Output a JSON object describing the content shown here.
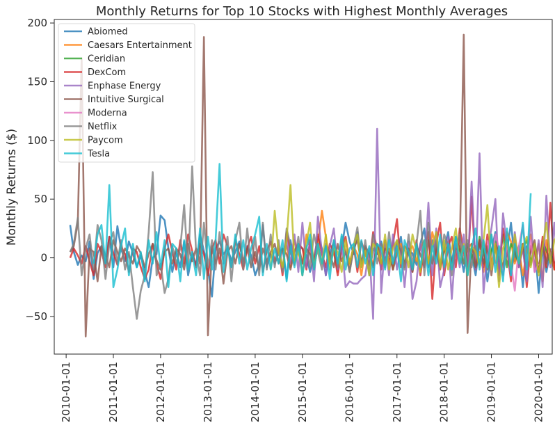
{
  "chart_data": {
    "type": "line",
    "title": "Monthly Returns for Top 10 Stocks with Highest Monthly Averages",
    "xlabel": "",
    "ylabel": "Monthly Returns ($)",
    "xlim": [
      "2009-10-01",
      "2020-04-15"
    ],
    "ylim": [
      -82,
      203
    ],
    "x_ticks": [
      "2010-01-01",
      "2011-01-01",
      "2012-01-01",
      "2013-01-01",
      "2014-01-01",
      "2015-01-01",
      "2016-01-01",
      "2017-01-01",
      "2018-01-01",
      "2019-01-01",
      "2020-01-01"
    ],
    "y_ticks": [
      -50,
      0,
      50,
      100,
      150,
      200
    ],
    "grid": false,
    "legend": "top-left",
    "series": [
      {
        "name": "Abiomed",
        "color": "#1f77b4",
        "start": "2010-02-01",
        "values": [
          28,
          5,
          -6,
          2,
          -3,
          14,
          -18,
          4,
          10,
          -5,
          18,
          -8,
          27,
          8,
          -3,
          14,
          4,
          -8,
          2,
          -12,
          -25,
          0,
          3,
          36,
          32,
          8,
          -12,
          5,
          -8,
          14,
          -15,
          3,
          -6,
          20,
          6,
          -10,
          -33,
          8,
          14,
          3,
          8,
          -2,
          5,
          14,
          -7,
          10,
          2,
          -15,
          -5,
          28,
          -8,
          3,
          -5,
          4,
          8,
          -18,
          15,
          -5,
          10,
          8,
          2,
          -12,
          0,
          18,
          8,
          -15,
          3,
          14,
          -6,
          8,
          30,
          14,
          3,
          22,
          -5,
          10,
          -15,
          8,
          3,
          14,
          -2,
          8,
          -10,
          3,
          18,
          -8,
          5,
          4,
          -6,
          12,
          25,
          -8,
          15,
          3,
          -10,
          8,
          22,
          -5,
          18,
          6,
          -12,
          10,
          3,
          -15,
          12,
          8,
          -20,
          6,
          22,
          -8,
          -14,
          5,
          30,
          -3,
          10,
          -25,
          10,
          -6,
          12,
          -30,
          8,
          -12,
          5,
          -5
        ]
      },
      {
        "name": "Caesars Entertainment",
        "color": "#ff7f0e",
        "start": "2014-08-01",
        "values": [
          5,
          10,
          -8,
          15,
          3,
          -5,
          20,
          8,
          -10,
          12,
          40,
          18,
          -5,
          8,
          -12,
          14,
          6,
          -8,
          10,
          3,
          -15,
          8,
          5,
          -6,
          12,
          3,
          -5,
          8,
          -10,
          6,
          12,
          -8,
          5,
          10,
          -3,
          8,
          15,
          -5,
          22,
          8,
          -10,
          6,
          14,
          -8,
          3,
          10,
          -5,
          8,
          12,
          -6,
          5,
          -12,
          10,
          -4,
          8,
          6,
          -10,
          22,
          14,
          -5,
          8,
          -15,
          5,
          20,
          -8,
          12,
          -20,
          15,
          5,
          -10,
          8,
          6
        ]
      },
      {
        "name": "Ceridian",
        "color": "#2ca02c",
        "start": "2018-05-01",
        "values": [
          8,
          -5,
          12,
          3,
          -8,
          18,
          5,
          -10,
          6,
          14,
          -3,
          20,
          -8,
          12,
          5,
          -6,
          8,
          15,
          -4,
          10,
          -12,
          14,
          6,
          -5
        ]
      },
      {
        "name": "DexCom",
        "color": "#d62728",
        "start": "2010-02-01",
        "values": [
          0,
          8,
          2,
          -5,
          10,
          -3,
          -15,
          12,
          5,
          -8,
          18,
          4,
          -6,
          10,
          3,
          -12,
          8,
          5,
          -8,
          -18,
          -10,
          12,
          -5,
          -18,
          8,
          20,
          5,
          -10,
          15,
          -5,
          20,
          6,
          -8,
          12,
          3,
          -15,
          8,
          15,
          -5,
          20,
          10,
          -8,
          15,
          3,
          -10,
          8,
          18,
          -5,
          10,
          -12,
          6,
          14,
          -3,
          8,
          -15,
          22,
          5,
          -6,
          12,
          8,
          -10,
          15,
          -4,
          20,
          3,
          -8,
          12,
          5,
          -15,
          8,
          18,
          -5,
          10,
          -12,
          14,
          3,
          -6,
          22,
          8,
          -10,
          15,
          -5,
          12,
          33,
          -8,
          10,
          6,
          -12,
          15,
          -15,
          8,
          22,
          -35,
          12,
          30,
          -15,
          10,
          18,
          -8,
          25,
          5,
          -12,
          52,
          -10,
          15,
          -8,
          20,
          -5,
          10,
          -15,
          25,
          8,
          -20,
          15,
          -8,
          12,
          -25,
          10,
          5,
          -12,
          18,
          -8,
          47,
          -10,
          10
        ]
      },
      {
        "name": "Enphase Energy",
        "color": "#9467bd",
        "start": "2014-08-01",
        "values": [
          -10,
          15,
          -5,
          20,
          -12,
          30,
          -8,
          15,
          -20,
          35,
          5,
          -15,
          10,
          25,
          -10,
          12,
          -25,
          -20,
          -22,
          -22,
          -18,
          -15,
          8,
          -52,
          110,
          -30,
          12,
          -15,
          20,
          -10,
          8,
          -25,
          14,
          -35,
          -20,
          12,
          -8,
          47,
          -15,
          25,
          -25,
          -10,
          18,
          -35,
          12,
          -8,
          20,
          -15,
          65,
          -10,
          89,
          -30,
          5,
          25,
          50,
          -20,
          38,
          10,
          -15,
          22,
          -8,
          8,
          -20,
          35,
          -12,
          15,
          -25,
          53,
          -8,
          30,
          -15,
          12,
          51,
          -12,
          20,
          55,
          -20,
          8,
          -10,
          15
        ]
      },
      {
        "name": "Intuitive Surgical",
        "color": "#8c564b",
        "start": "2010-02-01",
        "values": [
          5,
          10,
          30,
          170,
          -67,
          8,
          5,
          -20,
          10,
          2,
          -8,
          15,
          5,
          -3,
          8,
          2,
          -5,
          10,
          4,
          -8,
          3,
          12,
          -2,
          -10,
          5,
          8,
          -5,
          8,
          3,
          -10,
          12,
          -3,
          8,
          -5,
          188,
          -66,
          10,
          -5,
          8,
          -22,
          5,
          10,
          -5,
          12,
          -3,
          8,
          -8,
          5,
          -10,
          8,
          -3,
          5,
          12,
          -5,
          8,
          3,
          -10,
          6,
          12,
          -5,
          8,
          3,
          -8,
          12,
          -5,
          10,
          4,
          -8,
          12,
          -3,
          5,
          -12,
          8,
          15,
          -5,
          10,
          3,
          -8,
          12,
          -5,
          8,
          4,
          -10,
          12,
          6,
          -5,
          8,
          -12,
          10,
          3,
          -8,
          15,
          -5,
          10,
          -8,
          5,
          10,
          -4,
          8,
          6,
          190,
          -64,
          12,
          -8,
          15,
          -5,
          10,
          -15,
          12,
          5,
          -8,
          15,
          -10,
          8,
          -5,
          12,
          -8,
          5,
          15,
          -10,
          10,
          -5,
          8
        ]
      },
      {
        "name": "Moderna",
        "color": "#e377c2",
        "start": "2018-12-01",
        "values": [
          15,
          -10,
          20,
          8,
          -15,
          12,
          -5,
          -28,
          10,
          28,
          -8,
          15,
          -12,
          -5
        ]
      },
      {
        "name": "Netflix",
        "color": "#7f7f7f",
        "start": "2010-02-01",
        "values": [
          5,
          12,
          34,
          -15,
          8,
          20,
          -10,
          28,
          15,
          -18,
          12,
          22,
          -5,
          15,
          -10,
          5,
          -25,
          -52,
          -28,
          -15,
          22,
          73,
          -15,
          -5,
          -30,
          -18,
          10,
          -5,
          8,
          45,
          -10,
          78,
          5,
          -15,
          30,
          -8,
          15,
          -10,
          22,
          -5,
          18,
          -20,
          15,
          30,
          -10,
          25,
          -8,
          18,
          -15,
          30,
          -10,
          20,
          -8,
          15,
          -12,
          25,
          10,
          -5,
          18,
          -15,
          10,
          -8,
          20,
          5,
          -10,
          12,
          -5,
          15,
          -8,
          18,
          5,
          -12,
          10,
          26,
          -8,
          15,
          -10,
          20,
          -5,
          12,
          -8,
          22,
          -5,
          15,
          8,
          -10,
          20,
          -5,
          12,
          40,
          -15,
          30,
          -5,
          15,
          -8,
          20,
          10,
          -15,
          8,
          20,
          -5,
          15,
          -8,
          10,
          -5,
          15,
          -10,
          20,
          -5
        ]
      },
      {
        "name": "Paycom",
        "color": "#bcbd22",
        "start": "2014-05-01",
        "values": [
          -10,
          40,
          5,
          -8,
          15,
          62,
          -5,
          8,
          -15,
          12,
          30,
          -8,
          10,
          -5,
          20,
          -10,
          8,
          5,
          -12,
          15,
          -5,
          10,
          20,
          -8,
          6,
          -15,
          12,
          8,
          -5,
          20,
          -10,
          8,
          15,
          -5,
          10,
          -8,
          20,
          5,
          -12,
          15,
          -5,
          10,
          22,
          -8,
          15,
          -10,
          8,
          25,
          -5,
          12,
          -15,
          10,
          5,
          -8,
          15,
          45,
          -10,
          12,
          -25,
          8,
          15,
          -10,
          20,
          -5,
          10,
          18,
          -8,
          12,
          -15,
          10,
          30,
          -5,
          15,
          20
        ]
      },
      {
        "name": "Tesla",
        "color": "#17becf",
        "start": "2010-08-01",
        "values": [
          -5,
          20,
          28,
          -5,
          62,
          -25,
          -10,
          10,
          25,
          -15,
          12,
          -8,
          5,
          -20,
          15,
          -5,
          22,
          -8,
          15,
          -25,
          12,
          8,
          -20,
          15,
          -10,
          5,
          -15,
          25,
          -18,
          18,
          -10,
          15,
          80,
          -12,
          10,
          -8,
          20,
          -5,
          15,
          -10,
          8,
          20,
          35,
          -15,
          12,
          -10,
          8,
          -5,
          15,
          -20,
          10,
          -8,
          12,
          -15,
          8,
          20,
          -10,
          12,
          -5,
          10,
          -18,
          15,
          -5,
          20,
          -10,
          8,
          12,
          -8,
          15,
          -5,
          10,
          -15,
          12,
          8,
          -10,
          15,
          -5,
          10,
          -20,
          15,
          5,
          -10,
          12,
          -8,
          15,
          -15,
          10,
          -5,
          20,
          -8,
          12,
          -10,
          18,
          -5,
          10,
          -15,
          8,
          25,
          -10,
          15,
          -8,
          20,
          -12,
          10,
          -20,
          25,
          -15,
          12,
          -5,
          30,
          -10,
          55
        ]
      }
    ]
  }
}
